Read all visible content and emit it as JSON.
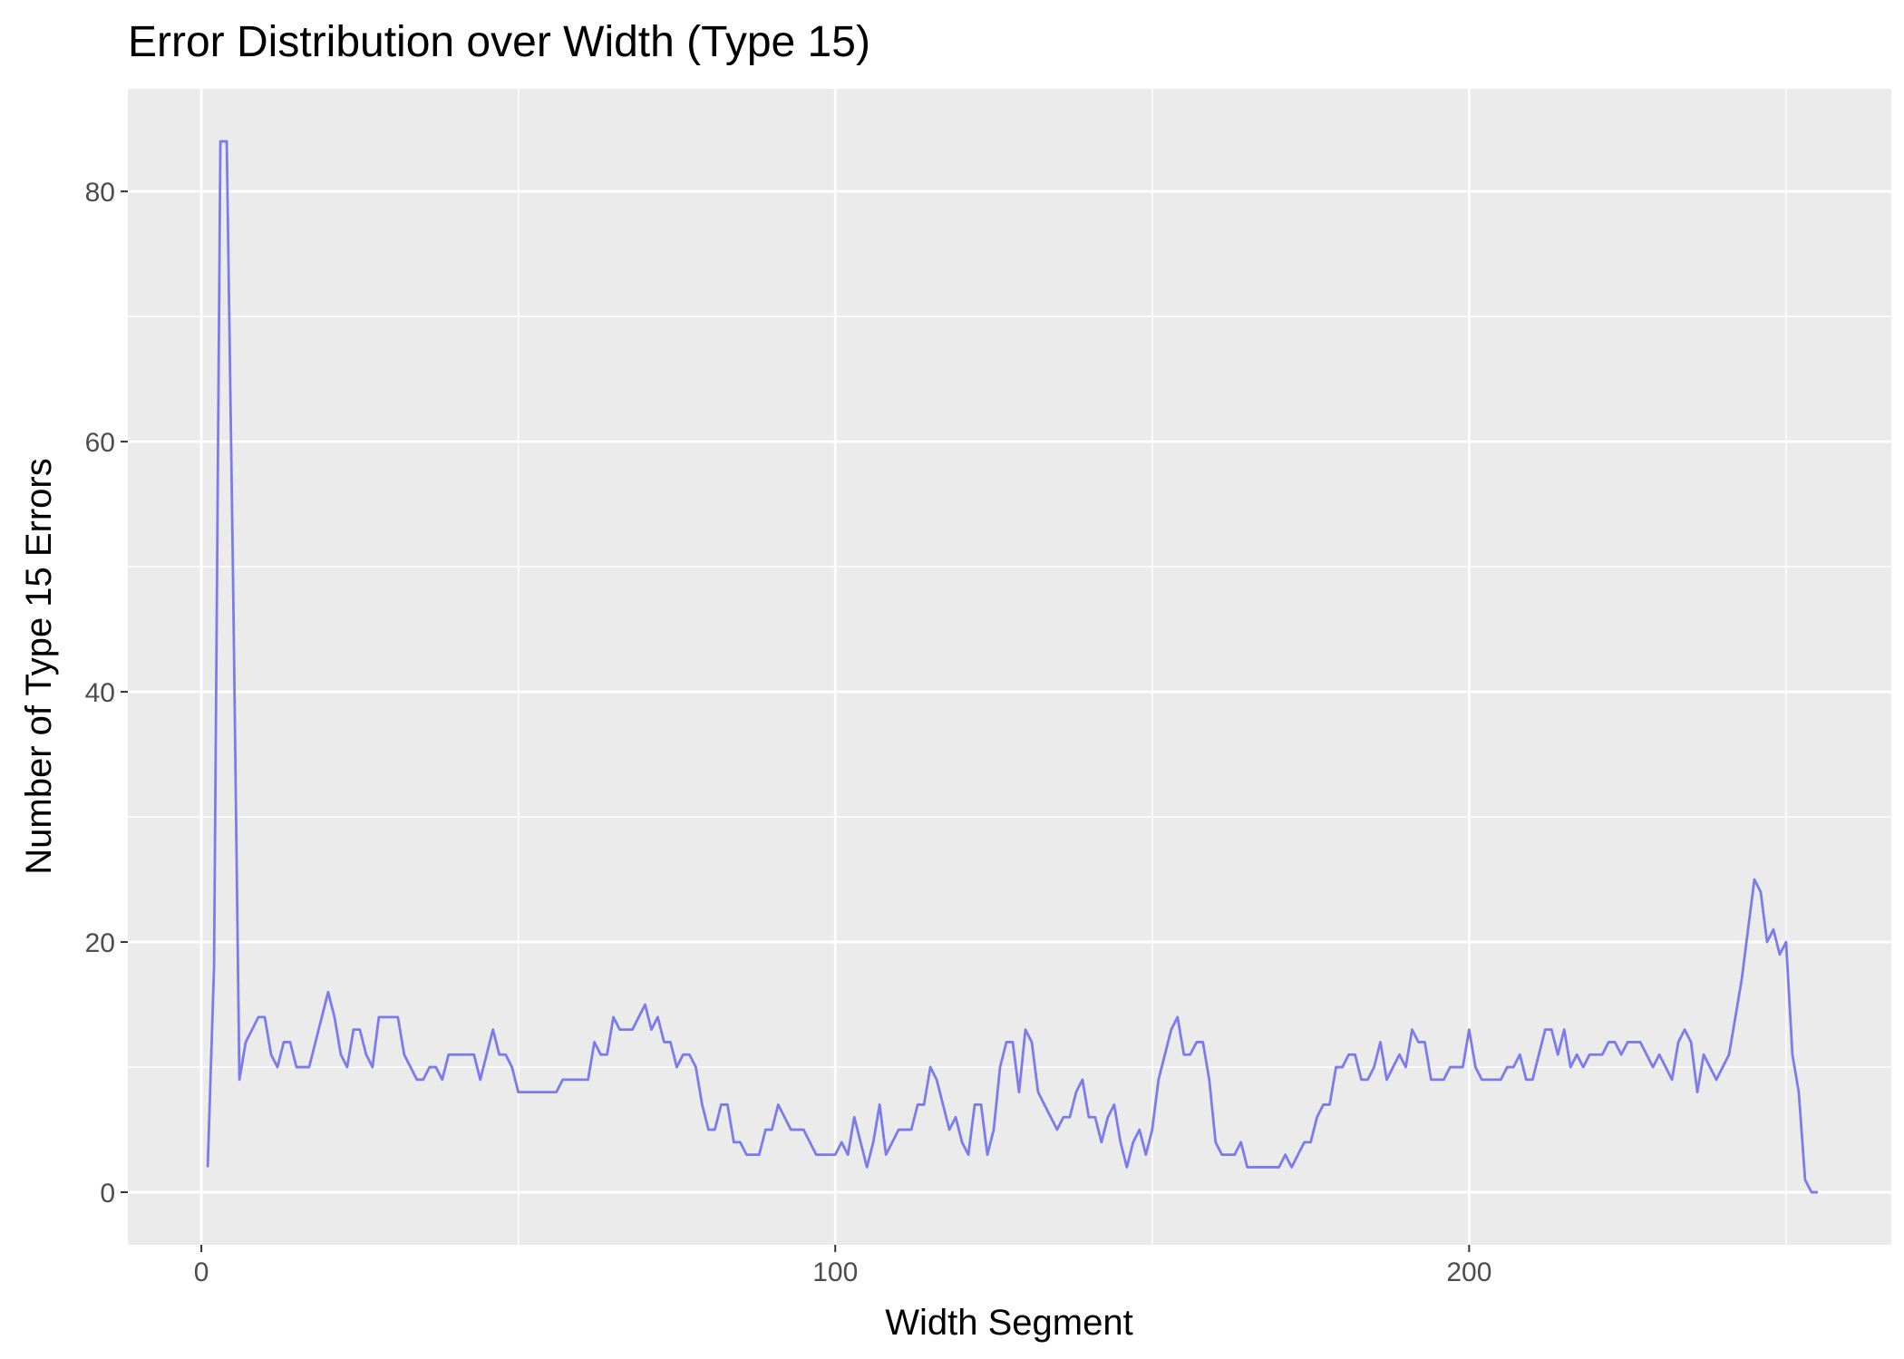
{
  "chart_data": {
    "type": "line",
    "title": "Error Distribution over Width (Type 15)",
    "xlabel": "Width Segment",
    "ylabel": "Number of Type 15 Errors",
    "xlim": [
      -11.6,
      266.6
    ],
    "ylim": [
      -4.2,
      88.2
    ],
    "x_ticks": [
      0,
      100,
      200
    ],
    "x_minor_ticks": [
      50,
      150,
      250
    ],
    "y_ticks": [
      0,
      20,
      40,
      60,
      80
    ],
    "y_minor_ticks": [
      10,
      30,
      50,
      70
    ],
    "grid": true,
    "panel_background": "#ebebeb",
    "grid_color": "#ffffff",
    "line_color": "#7b7bee",
    "series": [
      {
        "x_start": 1,
        "values": [
          2,
          18,
          84,
          84,
          49,
          9,
          12,
          13,
          14,
          14,
          11,
          10,
          12,
          12,
          10,
          10,
          10,
          12,
          14,
          16,
          14,
          11,
          10,
          13,
          13,
          11,
          10,
          14,
          14,
          14,
          14,
          11,
          10,
          9,
          9,
          10,
          10,
          9,
          11,
          11,
          11,
          11,
          11,
          9,
          11,
          13,
          11,
          11,
          10,
          8,
          8,
          8,
          8,
          8,
          8,
          8,
          9,
          9,
          9,
          9,
          9,
          12,
          11,
          11,
          14,
          13,
          13,
          13,
          14,
          15,
          13,
          14,
          12,
          12,
          10,
          11,
          11,
          10,
          7,
          5,
          5,
          7,
          7,
          4,
          4,
          3,
          3,
          3,
          5,
          5,
          7,
          6,
          5,
          5,
          5,
          4,
          3,
          3,
          3,
          3,
          4,
          3,
          6,
          4,
          2,
          4,
          7,
          3,
          4,
          5,
          5,
          5,
          7,
          7,
          10,
          9,
          7,
          5,
          6,
          4,
          3,
          7,
          7,
          3,
          5,
          10,
          12,
          12,
          8,
          13,
          12,
          8,
          7,
          6,
          5,
          6,
          6,
          8,
          9,
          6,
          6,
          4,
          6,
          7,
          4,
          2,
          4,
          5,
          3,
          5,
          9,
          11,
          13,
          14,
          11,
          11,
          12,
          12,
          9,
          4,
          3,
          3,
          3,
          4,
          2,
          2,
          2,
          2,
          2,
          2,
          3,
          2,
          3,
          4,
          4,
          6,
          7,
          7,
          10,
          10,
          11,
          11,
          9,
          9,
          10,
          12,
          9,
          10,
          11,
          10,
          13,
          12,
          12,
          9,
          9,
          9,
          10,
          10,
          10,
          13,
          10,
          9,
          9,
          9,
          9,
          10,
          10,
          11,
          9,
          9,
          11,
          13,
          13,
          11,
          13,
          10,
          11,
          10,
          11,
          11,
          11,
          12,
          12,
          11,
          12,
          12,
          12,
          11,
          10,
          11,
          10,
          9,
          12,
          13,
          12,
          8,
          11,
          10,
          9,
          10,
          11,
          14,
          17,
          21,
          25,
          24,
          20,
          21,
          19,
          20,
          11,
          8,
          1,
          0,
          0
        ]
      }
    ]
  }
}
